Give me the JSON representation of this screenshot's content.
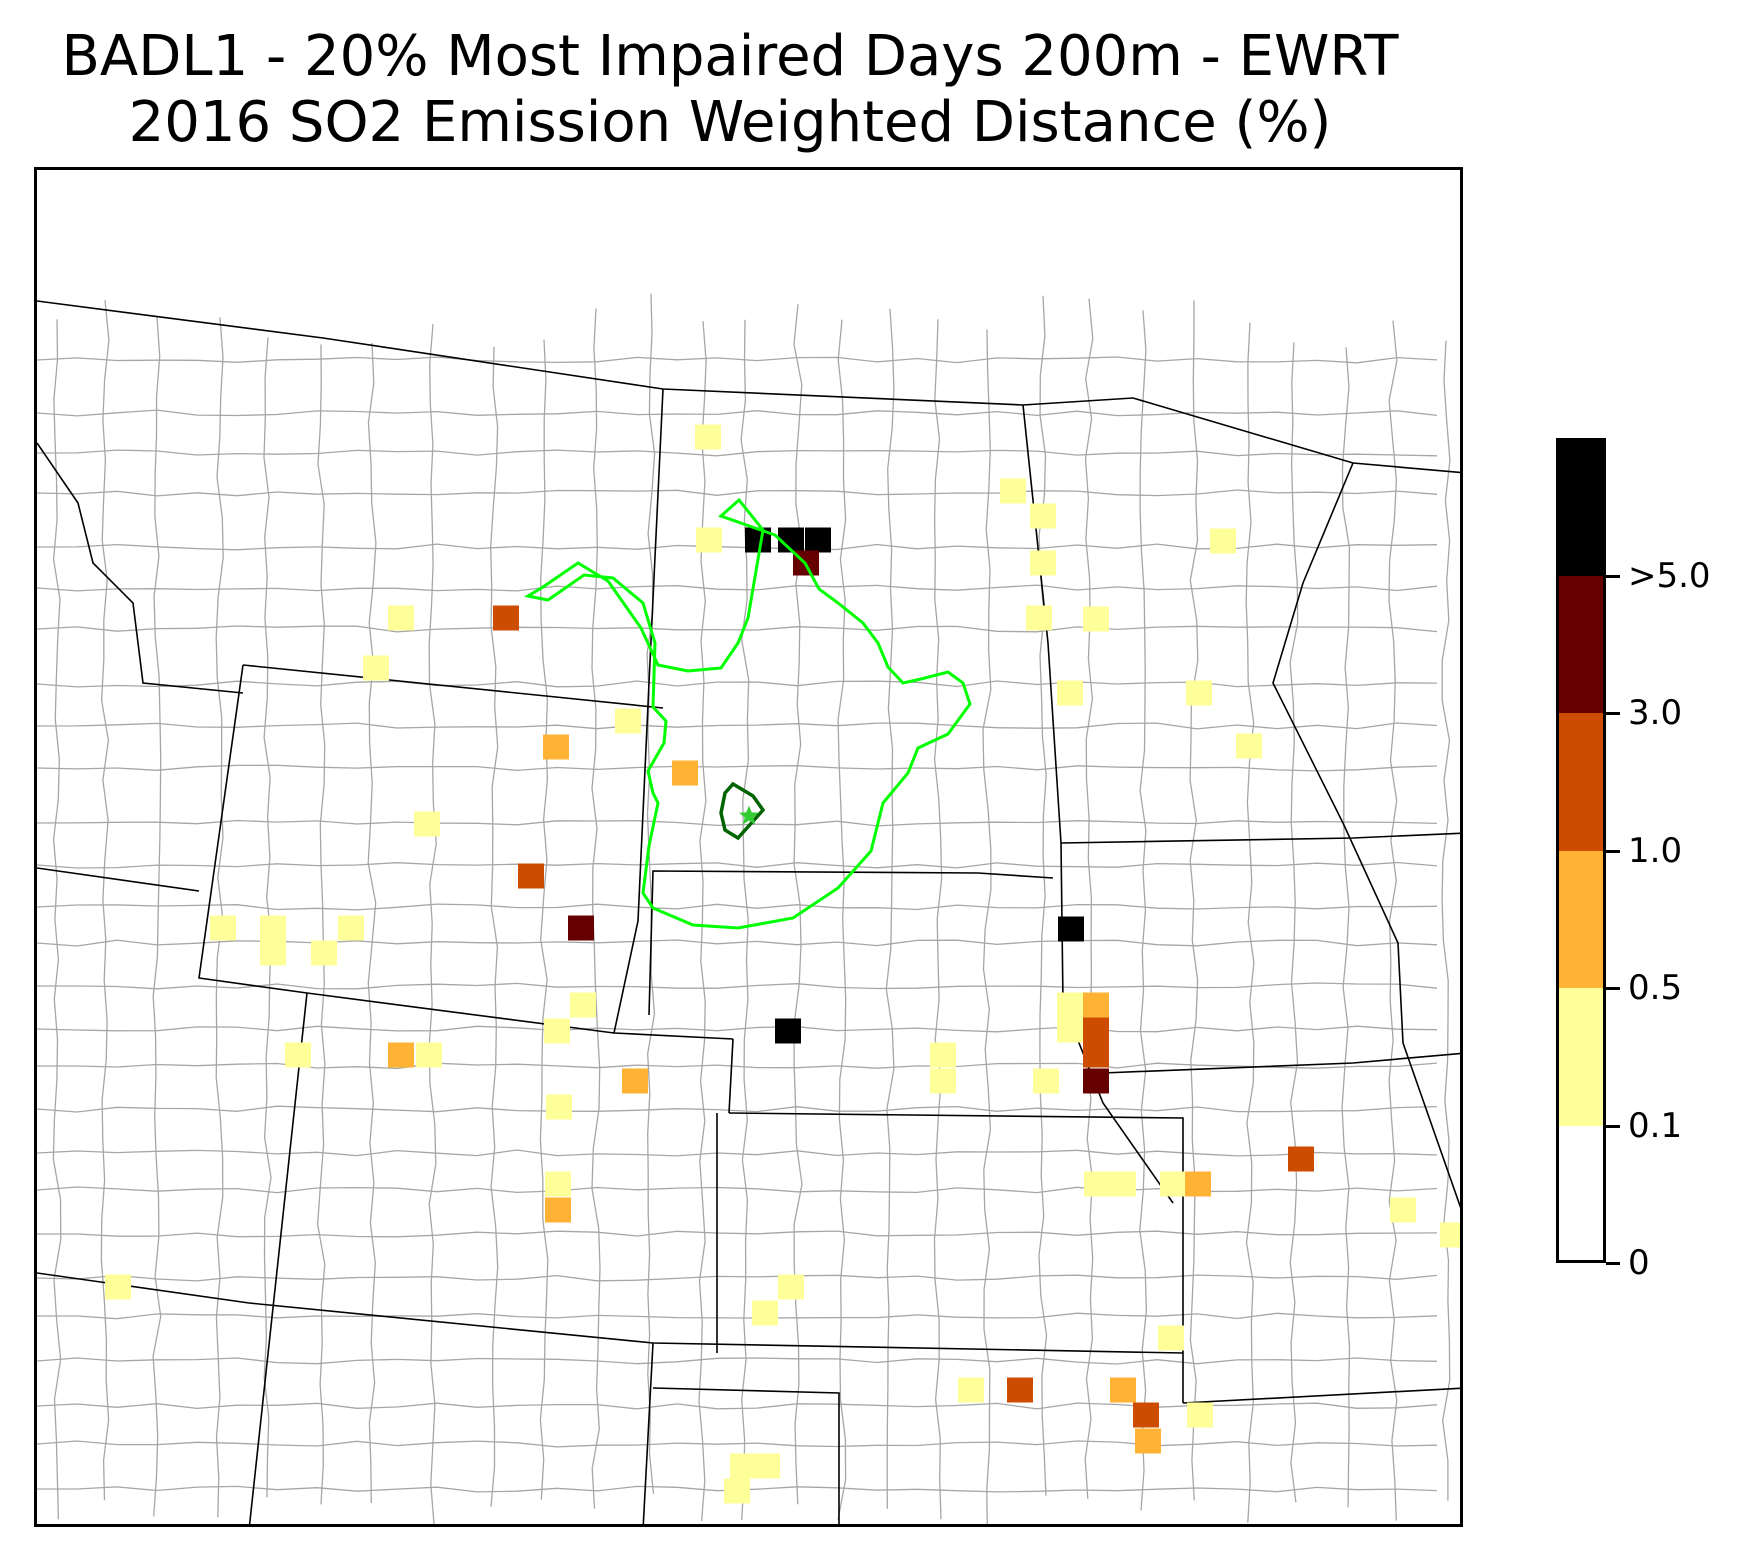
{
  "title": {
    "line1": "BADL1 - 20% Most Impaired Days 200m - EWRT",
    "line2": "2016 SO2 Emission Weighted Distance (%)"
  },
  "map": {
    "site": "BADL1",
    "site_marker": "star-icon",
    "colors": {
      "state_border": "#000000",
      "county_border": "#a6a6a6",
      "outer_contour": "#00ff00",
      "inner_contour": "#006400",
      "site_star": "#33cc33"
    }
  },
  "colorbar": {
    "bins": [
      {
        "range": "0 - 0.1",
        "color": "#ffffff"
      },
      {
        "range": "0.1 - 0.5",
        "color": "#ffff99"
      },
      {
        "range": "0.5 - 1.0",
        "color": "#ffb233"
      },
      {
        "range": "1.0 - 3.0",
        "color": "#cc4c00"
      },
      {
        "range": "3.0 - 5.0",
        "color": "#660000"
      },
      {
        "range": ">5.0",
        "color": "#000000"
      }
    ],
    "tick_labels": [
      "0",
      "0.1",
      "0.5",
      "1.0",
      "3.0",
      ">5.0"
    ]
  }
}
